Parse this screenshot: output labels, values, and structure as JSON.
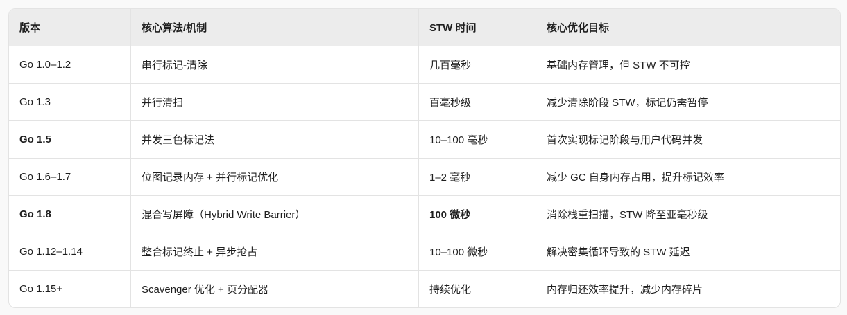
{
  "table": {
    "headers": [
      "版本",
      "核心算法/机制",
      "STW 时间",
      "核心优化目标"
    ],
    "rows": [
      {
        "version": "Go 1.0–1.2",
        "algorithm": "串行标记-清除",
        "stw": "几百毫秒",
        "goal": "基础内存管理，但 STW 不可控",
        "bold_version": false,
        "bold_stw": false
      },
      {
        "version": "Go 1.3",
        "algorithm": "并行清扫",
        "stw": "百毫秒级",
        "goal": "减少清除阶段 STW，标记仍需暂停",
        "bold_version": false,
        "bold_stw": false
      },
      {
        "version": "Go 1.5",
        "algorithm": "并发三色标记法",
        "stw": "10–100 毫秒",
        "goal": "首次实现标记阶段与用户代码并发",
        "bold_version": true,
        "bold_stw": false
      },
      {
        "version": "Go 1.6–1.7",
        "algorithm": "位图记录内存 + 并行标记优化",
        "stw": "1–2 毫秒",
        "goal": "减少 GC 自身内存占用，提升标记效率",
        "bold_version": false,
        "bold_stw": false
      },
      {
        "version": "Go 1.8",
        "algorithm": "混合写屏障（Hybrid Write Barrier）",
        "stw": "100 微秒",
        "goal": "消除栈重扫描，STW 降至亚毫秒级",
        "bold_version": true,
        "bold_stw": true
      },
      {
        "version": "Go 1.12–1.14",
        "algorithm": "整合标记终止 + 异步抢占",
        "stw": "10–100 微秒",
        "goal": "解决密集循环导致的 STW 延迟",
        "bold_version": false,
        "bold_stw": false
      },
      {
        "version": "Go 1.15+",
        "algorithm": "Scavenger 优化 + 页分配器",
        "stw": "持续优化",
        "goal": "内存归还效率提升，减少内存碎片",
        "bold_version": false,
        "bold_stw": false
      }
    ]
  }
}
